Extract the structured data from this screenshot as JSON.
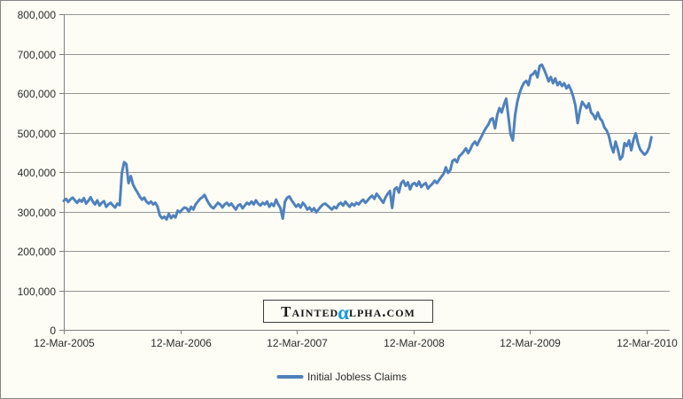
{
  "window": {
    "background": "#FDFDF6",
    "border_color": "#858585"
  },
  "colors": {
    "line": "#4F81BD",
    "gridline": "#969696",
    "axis": "#808080",
    "text": "#2B2B2B",
    "watermark_alpha": "#189CD8"
  },
  "chart_data": {
    "type": "line",
    "title": "",
    "xlabel": "",
    "ylabel": "",
    "grid": true,
    "legend_position": "bottom",
    "x": {
      "frequency": "weekly",
      "start_label": "12-Mar-2005",
      "end_label": "12-Mar-2010",
      "tick_labels": [
        "12-Mar-2005",
        "12-Mar-2006",
        "12-Mar-2007",
        "12-Mar-2008",
        "12-Mar-2009",
        "12-Mar-2010"
      ]
    },
    "y": {
      "min": 0,
      "max": 800000,
      "tick_interval": 100000,
      "tick_labels": [
        "0",
        "100,000",
        "200,000",
        "300,000",
        "400,000",
        "500,000",
        "600,000",
        "700,000",
        "800,000"
      ]
    },
    "series": [
      {
        "name": "Initial Jobless Claims",
        "color": "#4F81BD",
        "values": [
          327000,
          332000,
          324000,
          331000,
          335000,
          328000,
          322000,
          330000,
          325000,
          334000,
          320000,
          327000,
          336000,
          325000,
          318000,
          328000,
          315000,
          322000,
          326000,
          312000,
          318000,
          322000,
          315000,
          310000,
          320000,
          316000,
          398000,
          425000,
          420000,
          372000,
          390000,
          368000,
          357000,
          348000,
          338000,
          330000,
          335000,
          325000,
          320000,
          325000,
          318000,
          322000,
          312000,
          290000,
          283000,
          287000,
          280000,
          294000,
          283000,
          290000,
          285000,
          302000,
          298000,
          305000,
          310000,
          308000,
          300000,
          312000,
          305000,
          318000,
          325000,
          332000,
          336000,
          342000,
          330000,
          320000,
          312000,
          308000,
          315000,
          322000,
          318000,
          310000,
          318000,
          322000,
          315000,
          320000,
          312000,
          305000,
          315000,
          318000,
          308000,
          315000,
          322000,
          318000,
          325000,
          318000,
          328000,
          320000,
          315000,
          322000,
          318000,
          325000,
          312000,
          320000,
          314000,
          330000,
          318000,
          308000,
          282000,
          325000,
          335000,
          338000,
          328000,
          320000,
          312000,
          318000,
          310000,
          322000,
          315000,
          305000,
          310000,
          302000,
          308000,
          298000,
          305000,
          312000,
          318000,
          320000,
          315000,
          310000,
          305000,
          312000,
          308000,
          318000,
          322000,
          315000,
          325000,
          318000,
          312000,
          320000,
          315000,
          322000,
          318000,
          325000,
          330000,
          322000,
          328000,
          335000,
          340000,
          332000,
          345000,
          338000,
          330000,
          322000,
          336000,
          345000,
          352000,
          309000,
          356000,
          361000,
          348000,
          372000,
          378000,
          365000,
          374000,
          356000,
          369000,
          372000,
          365000,
          376000,
          362000,
          368000,
          372000,
          358000,
          365000,
          370000,
          378000,
          372000,
          380000,
          388000,
          395000,
          412000,
          398000,
          405000,
          428000,
          432000,
          425000,
          440000,
          445000,
          452000,
          460000,
          448000,
          458000,
          470000,
          477000,
          468000,
          480000,
          490000,
          502000,
          512000,
          520000,
          533000,
          536000,
          511000,
          545000,
          562000,
          551000,
          570000,
          586000,
          540000,
          495000,
          480000,
          545000,
          578000,
          600000,
          615000,
          626000,
          631000,
          620000,
          645000,
          648000,
          656000,
          640000,
          669000,
          672000,
          660000,
          645000,
          630000,
          641000,
          625000,
          637000,
          620000,
          628000,
          618000,
          625000,
          612000,
          620000,
          608000,
          592000,
          569000,
          524000,
          555000,
          578000,
          570000,
          562000,
          574000,
          551000,
          545000,
          534000,
          551000,
          536000,
          529000,
          513000,
          505000,
          491000,
          466000,
          450000,
          477000,
          457000,
          432000,
          439000,
          473000,
          466000,
          480000,
          455000,
          482000,
          498000,
          473000,
          457000,
          450000,
          444000,
          450000,
          462000,
          488000
        ]
      }
    ]
  },
  "legend": {
    "label": "Initial Jobless Claims"
  },
  "watermark": {
    "pre": "Tainted",
    "alpha": "α",
    "post": "lpha.com"
  }
}
